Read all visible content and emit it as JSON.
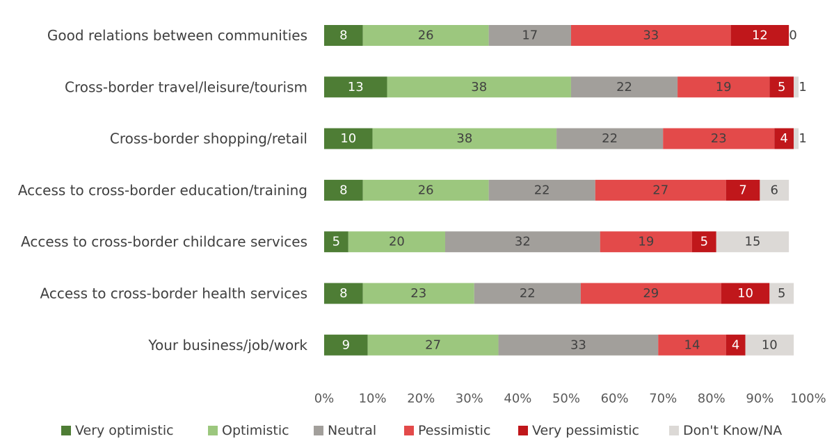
{
  "chart_data": {
    "type": "bar",
    "orientation": "horizontal",
    "stacked": true,
    "categories": [
      "Good relations between communities",
      "Cross-border travel/leisure/tourism",
      "Cross-border shopping/retail",
      "Access to cross-border education/training",
      "Access to cross-border childcare services",
      "Access to cross-border health services",
      "Your business/job/work"
    ],
    "series": [
      {
        "name": "Very optimistic",
        "color": "#4e7d35",
        "label_color": "#ffffff",
        "values": [
          8,
          13,
          10,
          8,
          5,
          8,
          9
        ]
      },
      {
        "name": "Optimistic",
        "color": "#9cc77e",
        "label_color": "#404040",
        "values": [
          26,
          38,
          38,
          26,
          20,
          23,
          27
        ]
      },
      {
        "name": "Neutral",
        "color": "#a29f9b",
        "label_color": "#404040",
        "values": [
          17,
          22,
          22,
          22,
          32,
          22,
          33
        ]
      },
      {
        "name": "Pessimistic",
        "color": "#e34a4a",
        "label_color": "#404040",
        "values": [
          33,
          19,
          23,
          27,
          19,
          29,
          14
        ]
      },
      {
        "name": "Very pessimistic",
        "color": "#c0171b",
        "label_color": "#ffffff",
        "values": [
          12,
          5,
          4,
          7,
          5,
          10,
          4
        ]
      },
      {
        "name": "Don't Know/NA",
        "color": "#dcd9d6",
        "label_color": "#404040",
        "values": [
          0,
          1,
          1,
          6,
          15,
          5,
          10
        ]
      }
    ],
    "xlim": [
      0,
      100
    ],
    "xticks": [
      "0%",
      "10%",
      "20%",
      "30%",
      "40%",
      "50%",
      "60%",
      "70%",
      "80%",
      "90%",
      "100%"
    ],
    "grid": false,
    "legend_position": "bottom"
  }
}
